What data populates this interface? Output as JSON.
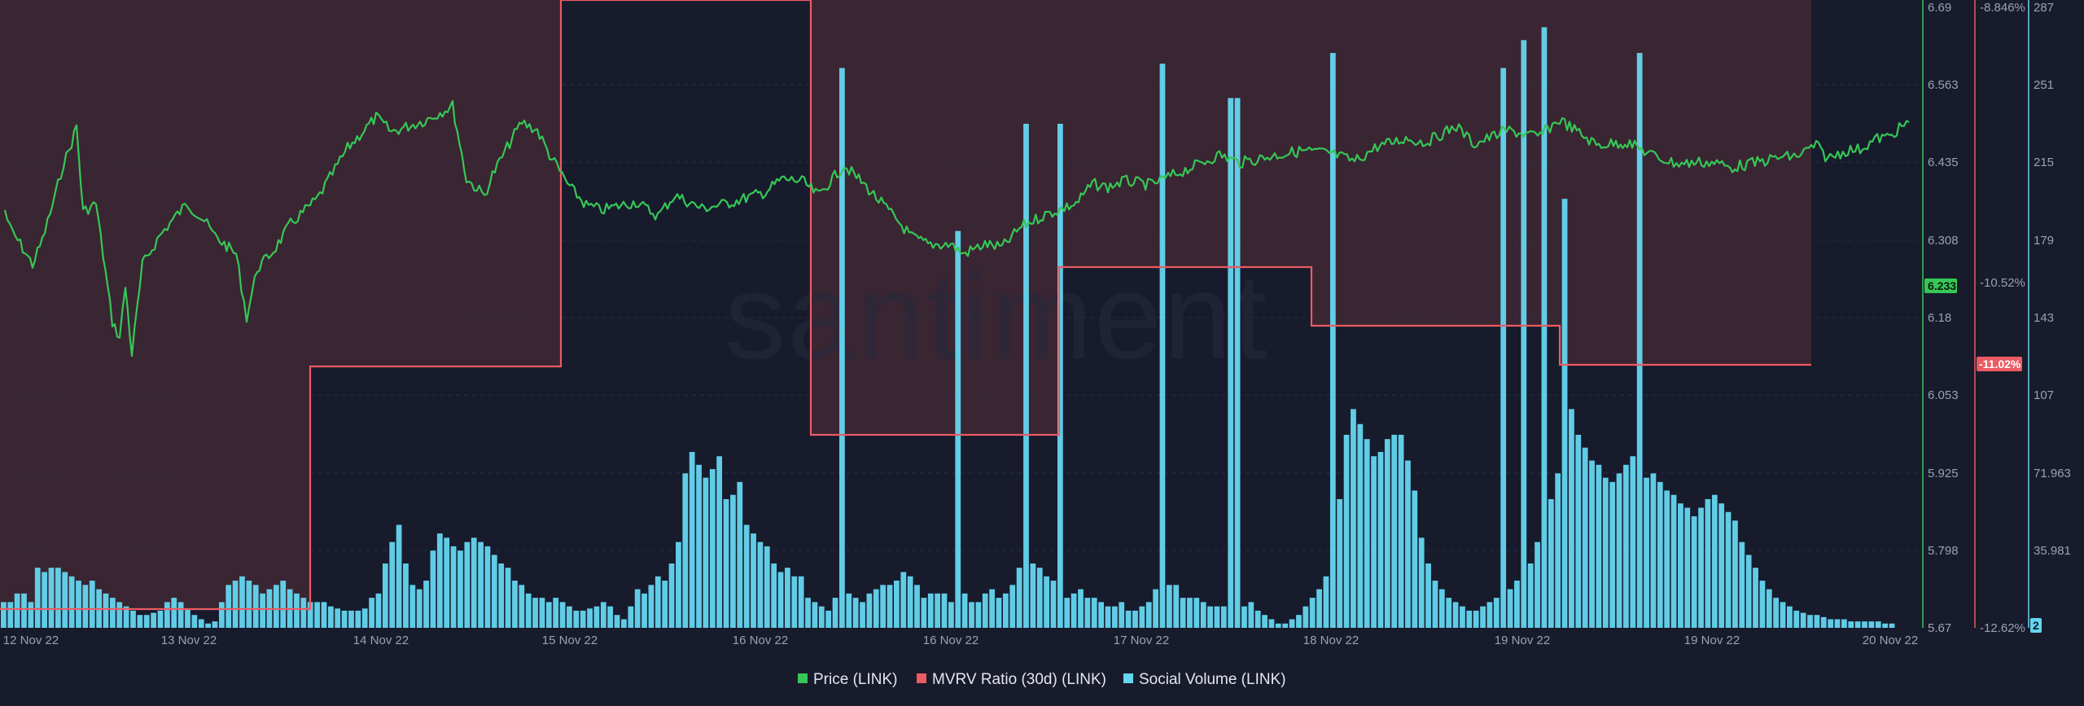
{
  "watermark": "santiment",
  "colors": {
    "background": "#181b2b",
    "plot_bg": "#171b2c",
    "overvalued_fill": "#3a2532",
    "price": "#36c756",
    "mvrv": "#ea5b63",
    "social": "#65d6f0",
    "axis_text": "#9aa0b4"
  },
  "chart_data": {
    "type": "line",
    "x_axis": {
      "tick_labels": [
        "12 Nov 22",
        "13 Nov 22",
        "14 Nov 22",
        "15 Nov 22",
        "16 Nov 22",
        "16 Nov 22",
        "17 Nov 22",
        "18 Nov 22",
        "19 Nov 22",
        "19 Nov 22",
        "20 Nov 22"
      ],
      "start": "2022-11-12",
      "end": "2022-11-20"
    },
    "price_axis": {
      "ticks": [
        "6.69",
        "6.563",
        "6.435",
        "6.308",
        "6.18",
        "6.053",
        "5.925",
        "5.798",
        "5.67"
      ],
      "range": [
        5.67,
        6.69
      ],
      "current_badge": "6.233"
    },
    "mvrv_axis": {
      "ticks": [
        "-8.846%",
        "-10.52%",
        "-12.62%"
      ],
      "range": [
        -12.62,
        -8.846
      ],
      "current_badge": "-11.02%"
    },
    "social_axis": {
      "ticks": [
        "287",
        "251",
        "215",
        "179",
        "143",
        "107",
        "71.963",
        "35.981"
      ],
      "range": [
        0,
        287
      ],
      "current_badge": "2"
    },
    "legend": [
      {
        "key": "price",
        "label": "Price (LINK)"
      },
      {
        "key": "mvrv",
        "label": "MVRV Ratio (30d) (LINK)"
      },
      {
        "key": "social",
        "label": "Social Volume (LINK)"
      }
    ],
    "series": [
      {
        "name": "Price (LINK)",
        "axis": "price",
        "kind": "line",
        "points": [
          [
            0.0,
            6.2
          ],
          [
            1.0,
            6.15
          ],
          [
            2.0,
            6.13
          ],
          [
            3.0,
            6.08
          ],
          [
            4.0,
            6.25
          ],
          [
            5.0,
            6.38
          ],
          [
            6.0,
            6.33
          ],
          [
            7.0,
            6.23
          ],
          [
            7.7,
            6.25
          ],
          [
            8.3,
            6.15
          ],
          [
            9.0,
            6.05
          ],
          [
            10.0,
            6.0
          ],
          [
            10.5,
            5.93
          ],
          [
            11.0,
            5.82
          ],
          [
            11.5,
            5.95
          ],
          [
            12.0,
            5.78
          ],
          [
            13.0,
            5.93
          ],
          [
            13.5,
            6.05
          ],
          [
            14.0,
            6.13
          ],
          [
            15.0,
            6.18
          ],
          [
            16.0,
            6.05
          ],
          [
            17.0,
            6.02
          ],
          [
            18.0,
            6.02
          ],
          [
            18.5,
            6.18
          ],
          [
            19.0,
            6.42
          ],
          [
            19.5,
            6.47
          ],
          [
            20.0,
            6.55
          ],
          [
            21.0,
            6.68
          ],
          [
            22.0,
            6.65
          ],
          [
            23.0,
            6.55
          ],
          [
            24.0,
            6.43
          ],
          [
            25.0,
            6.45
          ],
          [
            25.5,
            6.47
          ],
          [
            26.0,
            6.48
          ],
          [
            27.0,
            6.43
          ],
          [
            28.0,
            6.28
          ],
          [
            29.0,
            6.23
          ],
          [
            30.0,
            6.21
          ],
          [
            31.0,
            6.18
          ],
          [
            32.0,
            6.08
          ],
          [
            33.0,
            6.15
          ],
          [
            34.0,
            6.22
          ],
          [
            35.0,
            6.13
          ],
          [
            36.0,
            6.23
          ],
          [
            37.0,
            6.24
          ],
          [
            38.0,
            6.2
          ],
          [
            39.0,
            6.28
          ],
          [
            40.0,
            6.29
          ],
          [
            41.0,
            6.34
          ],
          [
            42.0,
            6.3
          ],
          [
            43.0,
            6.25
          ],
          [
            44.0,
            6.23
          ],
          [
            45.0,
            6.17
          ],
          [
            46.0,
            6.15
          ],
          [
            47.0,
            6.16
          ],
          [
            48.0,
            6.14
          ],
          [
            48.6,
            6.1
          ],
          [
            49.0,
            6.11
          ],
          [
            50.0,
            6.12
          ],
          [
            51.0,
            6.18
          ],
          [
            52.0,
            6.2
          ],
          [
            53.0,
            6.24
          ]
        ],
        "px": [
          [
            6,
            258
          ],
          [
            12,
            280
          ],
          [
            25,
            300
          ],
          [
            40,
            325
          ],
          [
            52,
            295
          ],
          [
            68,
            240
          ],
          [
            78,
            200
          ],
          [
            85,
            185
          ],
          [
            94,
            155
          ],
          [
            102,
            260
          ],
          [
            118,
            250
          ],
          [
            138,
            395
          ],
          [
            147,
            415
          ],
          [
            154,
            352
          ],
          [
            162,
            435
          ],
          [
            175,
            325
          ],
          [
            196,
            290
          ],
          [
            212,
            270
          ],
          [
            230,
            250
          ],
          [
            251,
            271
          ],
          [
            264,
            290
          ],
          [
            290,
            312
          ],
          [
            303,
            390
          ],
          [
            316,
            330
          ],
          [
            336,
            308
          ],
          [
            357,
            275
          ],
          [
            390,
            244
          ],
          [
            427,
            182
          ],
          [
            462,
            144
          ],
          [
            481,
            162
          ],
          [
            522,
            148
          ],
          [
            556,
            130
          ],
          [
            573,
            220
          ],
          [
            595,
            240
          ],
          [
            605,
            215
          ],
          [
            629,
            170
          ],
          [
            641,
            150
          ],
          [
            660,
            160
          ],
          [
            675,
            190
          ],
          [
            700,
            230
          ],
          [
            720,
            252
          ],
          [
            739,
            258
          ],
          [
            781,
            248
          ],
          [
            808,
            265
          ],
          [
            829,
            240
          ],
          [
            862,
            256
          ],
          [
            893,
            250
          ],
          [
            940,
            236
          ],
          [
            960,
            220
          ],
          [
            985,
            222
          ],
          [
            1005,
            240
          ],
          [
            1037,
            203
          ],
          [
            1061,
            226
          ],
          [
            1098,
            266
          ],
          [
            1120,
            291
          ],
          [
            1140,
            300
          ],
          [
            1168,
            300
          ],
          [
            1183,
            312
          ],
          [
            1210,
            300
          ],
          [
            1231,
            304
          ],
          [
            1255,
            278
          ],
          [
            1281,
            265
          ],
          [
            1322,
            250
          ],
          [
            1342,
            226
          ],
          [
            1361,
            230
          ],
          [
            1381,
            222
          ],
          [
            1413,
            227
          ],
          [
            1441,
            215
          ],
          [
            1465,
            205
          ],
          [
            1498,
            190
          ],
          [
            1523,
            200
          ],
          [
            1560,
            192
          ],
          [
            1599,
            185
          ],
          [
            1633,
            188
          ],
          [
            1664,
            198
          ],
          [
            1692,
            180
          ],
          [
            1727,
            170
          ],
          [
            1751,
            175
          ],
          [
            1789,
            155
          ],
          [
            1811,
            177
          ],
          [
            1851,
            160
          ],
          [
            1889,
            168
          ],
          [
            1916,
            147
          ],
          [
            1961,
            178
          ],
          [
            1985,
            176
          ],
          [
            1999,
            175
          ],
          [
            2035,
            193
          ],
          [
            2056,
            200
          ],
          [
            2069,
            201
          ],
          [
            2087,
            199
          ],
          [
            2109,
            200
          ],
          [
            2125,
            206
          ],
          [
            2165,
            198
          ],
          [
            2187,
            193
          ],
          [
            2207,
            192
          ],
          [
            2231,
            178
          ],
          [
            2245,
            195
          ],
          [
            2267,
            185
          ],
          [
            2285,
            183
          ],
          [
            2306,
            170
          ],
          [
            2321,
            168
          ],
          [
            2330,
            160
          ],
          [
            2345,
            150
          ]
        ]
      },
      {
        "name": "MVRV Ratio (30d) (LINK)",
        "axis": "mvrv",
        "kind": "step",
        "px": [
          [
            0,
            748
          ],
          [
            381,
            748
          ],
          [
            381,
            450
          ],
          [
            689,
            450
          ],
          [
            689,
            0
          ],
          [
            996,
            0
          ],
          [
            996,
            534
          ],
          [
            1301,
            534
          ],
          [
            1301,
            328
          ],
          [
            1611,
            328
          ],
          [
            1611,
            400
          ],
          [
            1916,
            400
          ],
          [
            1916,
            448
          ],
          [
            2225,
            448
          ]
        ]
      },
      {
        "name": "Social Volume (LINK)",
        "axis": "social",
        "kind": "bar",
        "x_start": 0,
        "x_end": 2328,
        "values": [
          12,
          12,
          16,
          16,
          12,
          28,
          26,
          28,
          28,
          26,
          24,
          22,
          20,
          22,
          18,
          16,
          14,
          12,
          10,
          8,
          6,
          6,
          7,
          8,
          12,
          14,
          12,
          9,
          6,
          4,
          2,
          3,
          12,
          20,
          22,
          24,
          22,
          20,
          16,
          18,
          20,
          22,
          18,
          16,
          14,
          12,
          12,
          12,
          10,
          9,
          8,
          8,
          8,
          9,
          14,
          16,
          30,
          40,
          48,
          30,
          20,
          18,
          22,
          36,
          44,
          42,
          38,
          36,
          40,
          42,
          40,
          38,
          34,
          30,
          28,
          22,
          20,
          16,
          14,
          14,
          12,
          14,
          12,
          10,
          8,
          8,
          9,
          10,
          12,
          10,
          6,
          4,
          10,
          18,
          16,
          20,
          24,
          22,
          30,
          40,
          72,
          82,
          76,
          70,
          74,
          80,
          60,
          62,
          68,
          48,
          44,
          40,
          38,
          30,
          26,
          28,
          24,
          24,
          14,
          12,
          10,
          8,
          14,
          18,
          16,
          14,
          12,
          16,
          18,
          20,
          20,
          22,
          26,
          24,
          20,
          14,
          16,
          16,
          16,
          12,
          14,
          16,
          12,
          12,
          16,
          18,
          14,
          16,
          20,
          28,
          34,
          30,
          28,
          24,
          22,
          20,
          14,
          16,
          18,
          14,
          14,
          12,
          10,
          10,
          12,
          8,
          8,
          10,
          12,
          18,
          20,
          20,
          20,
          14,
          14,
          14,
          12,
          10,
          10,
          10,
          8,
          9,
          10,
          12,
          8,
          6,
          4,
          2,
          2,
          4,
          6,
          10,
          14,
          18,
          24,
          30,
          60,
          90,
          102,
          95,
          88,
          80,
          82,
          88,
          90,
          90,
          78,
          64,
          42,
          30,
          22,
          18,
          14,
          12,
          10,
          8,
          8,
          10,
          12,
          14,
          16,
          18,
          22,
          20,
          30,
          40,
          46,
          60,
          72,
          96,
          102,
          90,
          84,
          78,
          76,
          70,
          68,
          72,
          76,
          80,
          74,
          70,
          72,
          68,
          64,
          62,
          58,
          56,
          52,
          56,
          60,
          62,
          58,
          54,
          50,
          40,
          34,
          28,
          22,
          18,
          14,
          12,
          10,
          8,
          7,
          6,
          6,
          5,
          4,
          4,
          4,
          3,
          3,
          3,
          3,
          3,
          2,
          2
        ]
      }
    ]
  }
}
